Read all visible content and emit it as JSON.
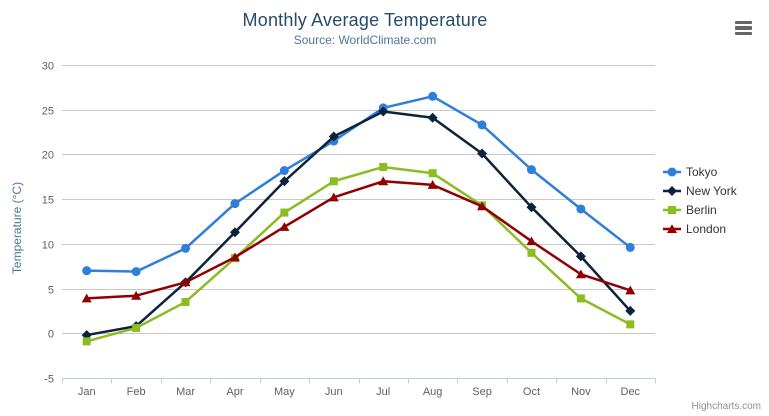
{
  "chart_data": {
    "type": "line",
    "title": "Monthly Average Temperature",
    "subtitle": "Source: WorldClimate.com",
    "xlabel": "",
    "ylabel": "Temperature (°C)",
    "categories": [
      "Jan",
      "Feb",
      "Mar",
      "Apr",
      "May",
      "Jun",
      "Jul",
      "Aug",
      "Sep",
      "Oct",
      "Nov",
      "Dec"
    ],
    "ylim": [
      -5,
      30
    ],
    "yticks": [
      -5,
      0,
      5,
      10,
      15,
      20,
      25,
      30
    ],
    "grid": true,
    "legend_position": "right",
    "series": [
      {
        "name": "Tokyo",
        "marker": "circle",
        "color": "#2f7ed8",
        "values": [
          7.0,
          6.9,
          9.5,
          14.5,
          18.2,
          21.5,
          25.2,
          26.5,
          23.3,
          18.3,
          13.9,
          9.6
        ]
      },
      {
        "name": "New York",
        "marker": "diamond",
        "color": "#0d233a",
        "values": [
          -0.2,
          0.8,
          5.7,
          11.3,
          17.0,
          22.0,
          24.8,
          24.1,
          20.1,
          14.1,
          8.6,
          2.5
        ]
      },
      {
        "name": "Berlin",
        "marker": "square",
        "color": "#8bbc21",
        "values": [
          -0.9,
          0.6,
          3.5,
          8.4,
          13.5,
          17.0,
          18.6,
          17.9,
          14.3,
          9.0,
          3.9,
          1.0
        ]
      },
      {
        "name": "London",
        "marker": "triangle",
        "color": "#910000",
        "values": [
          3.9,
          4.2,
          5.7,
          8.5,
          11.9,
          15.2,
          17.0,
          16.6,
          14.2,
          10.3,
          6.6,
          4.8
        ]
      }
    ]
  },
  "credits": {
    "label": "Highcharts.com"
  },
  "colors": {
    "background": "#ffffff",
    "grid": "#c8c8c8",
    "axis_line": "#c0d0e0",
    "tick": "#c0d0e0",
    "axis_label": "#606060",
    "title": "#274b6d",
    "subtitle": "#4d759e",
    "ylabel_title": "#4d759e",
    "legend_text": "#333333",
    "credits_text": "#8f8f8f",
    "menu_icon": "#666666"
  }
}
